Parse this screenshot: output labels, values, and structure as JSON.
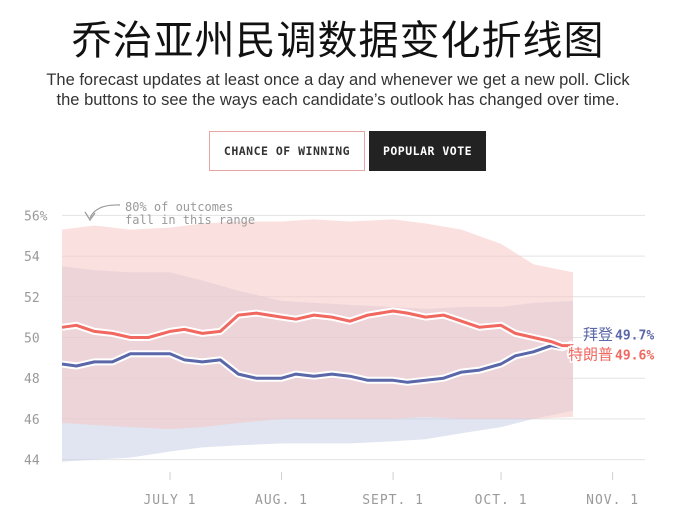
{
  "title": "乔治亚州民调数据变化折线图",
  "subtitle": {
    "line1": "The forecast updates at least once a day and whenever we get a new poll. Click",
    "line2": "the buttons to see the ways each candidate’s outlook has changed over time."
  },
  "buttons": {
    "chance": "CHANCE OF WINNING",
    "popular": "POPULAR VOTE"
  },
  "chart_data": {
    "type": "line",
    "annotation_line1": "80% of outcomes",
    "annotation_line2": "fall in this range",
    "ylim": [
      43,
      57
    ],
    "yticks": [
      44,
      46,
      48,
      50,
      52,
      54,
      56
    ],
    "ytick_labels": [
      "44",
      "46",
      "48",
      "50",
      "52",
      "54",
      "56%"
    ],
    "xlim": [
      "2020-06-01",
      "2020-11-10"
    ],
    "xticks": [
      {
        "date": "2020-07-01",
        "label": "JULY 1"
      },
      {
        "date": "2020-08-01",
        "label": "AUG. 1"
      },
      {
        "date": "2020-09-01",
        "label": "SEPT. 1"
      },
      {
        "date": "2020-10-01",
        "label": "OCT. 1"
      },
      {
        "date": "2020-11-01",
        "label": "NOV. 1"
      }
    ],
    "grid": true,
    "series": [
      {
        "name": "拜登",
        "value_label": "49.7%",
        "color": "#5a67a8",
        "band_color": "#c9cfe6",
        "points": [
          [
            "2020-06-01",
            48.7
          ],
          [
            "2020-06-05",
            48.6
          ],
          [
            "2020-06-10",
            48.8
          ],
          [
            "2020-06-15",
            48.8
          ],
          [
            "2020-06-20",
            49.2
          ],
          [
            "2020-06-25",
            49.2
          ],
          [
            "2020-07-01",
            49.2
          ],
          [
            "2020-07-05",
            48.9
          ],
          [
            "2020-07-10",
            48.8
          ],
          [
            "2020-07-15",
            48.9
          ],
          [
            "2020-07-20",
            48.2
          ],
          [
            "2020-07-25",
            48.0
          ],
          [
            "2020-08-01",
            48.0
          ],
          [
            "2020-08-05",
            48.2
          ],
          [
            "2020-08-10",
            48.1
          ],
          [
            "2020-08-15",
            48.2
          ],
          [
            "2020-08-20",
            48.1
          ],
          [
            "2020-08-25",
            47.9
          ],
          [
            "2020-09-01",
            47.9
          ],
          [
            "2020-09-05",
            47.8
          ],
          [
            "2020-09-10",
            47.9
          ],
          [
            "2020-09-15",
            48.0
          ],
          [
            "2020-09-20",
            48.3
          ],
          [
            "2020-09-25",
            48.4
          ],
          [
            "2020-10-01",
            48.7
          ],
          [
            "2020-10-05",
            49.1
          ],
          [
            "2020-10-10",
            49.3
          ],
          [
            "2020-10-15",
            49.6
          ],
          [
            "2020-10-18",
            49.5
          ],
          [
            "2020-10-21",
            49.7
          ]
        ],
        "band_upper": [
          [
            "2020-06-01",
            53.5
          ],
          [
            "2020-06-10",
            53.3
          ],
          [
            "2020-06-20",
            53.2
          ],
          [
            "2020-07-01",
            53.2
          ],
          [
            "2020-07-10",
            52.8
          ],
          [
            "2020-07-20",
            52.3
          ],
          [
            "2020-08-01",
            51.8
          ],
          [
            "2020-08-10",
            51.7
          ],
          [
            "2020-08-20",
            51.6
          ],
          [
            "2020-09-01",
            51.5
          ],
          [
            "2020-09-10",
            51.4
          ],
          [
            "2020-09-20",
            51.5
          ],
          [
            "2020-10-01",
            51.5
          ],
          [
            "2020-10-10",
            51.7
          ],
          [
            "2020-10-21",
            51.8
          ]
        ],
        "band_lower": [
          [
            "2020-06-01",
            43.9
          ],
          [
            "2020-06-10",
            44.0
          ],
          [
            "2020-06-20",
            44.1
          ],
          [
            "2020-07-01",
            44.4
          ],
          [
            "2020-07-10",
            44.6
          ],
          [
            "2020-07-20",
            44.7
          ],
          [
            "2020-08-01",
            44.8
          ],
          [
            "2020-08-10",
            44.8
          ],
          [
            "2020-08-20",
            44.8
          ],
          [
            "2020-09-01",
            44.9
          ],
          [
            "2020-09-10",
            45.0
          ],
          [
            "2020-09-20",
            45.3
          ],
          [
            "2020-10-01",
            45.6
          ],
          [
            "2020-10-10",
            46.0
          ],
          [
            "2020-10-21",
            46.4
          ]
        ]
      },
      {
        "name": "特朗普",
        "value_label": "49.6%",
        "color": "#f0685f",
        "band_color": "#f6c6c3",
        "points": [
          [
            "2020-06-01",
            50.5
          ],
          [
            "2020-06-05",
            50.6
          ],
          [
            "2020-06-10",
            50.3
          ],
          [
            "2020-06-15",
            50.2
          ],
          [
            "2020-06-20",
            50.0
          ],
          [
            "2020-06-25",
            50.0
          ],
          [
            "2020-07-01",
            50.3
          ],
          [
            "2020-07-05",
            50.4
          ],
          [
            "2020-07-10",
            50.2
          ],
          [
            "2020-07-15",
            50.3
          ],
          [
            "2020-07-20",
            51.1
          ],
          [
            "2020-07-25",
            51.2
          ],
          [
            "2020-08-01",
            51.0
          ],
          [
            "2020-08-05",
            50.9
          ],
          [
            "2020-08-10",
            51.1
          ],
          [
            "2020-08-15",
            51.0
          ],
          [
            "2020-08-20",
            50.8
          ],
          [
            "2020-08-25",
            51.1
          ],
          [
            "2020-09-01",
            51.3
          ],
          [
            "2020-09-05",
            51.2
          ],
          [
            "2020-09-10",
            51.0
          ],
          [
            "2020-09-15",
            51.1
          ],
          [
            "2020-09-20",
            50.8
          ],
          [
            "2020-09-25",
            50.5
          ],
          [
            "2020-10-01",
            50.6
          ],
          [
            "2020-10-05",
            50.2
          ],
          [
            "2020-10-10",
            50.0
          ],
          [
            "2020-10-15",
            49.8
          ],
          [
            "2020-10-18",
            49.6
          ],
          [
            "2020-10-21",
            49.6
          ]
        ],
        "band_upper": [
          [
            "2020-06-01",
            55.3
          ],
          [
            "2020-06-10",
            55.5
          ],
          [
            "2020-06-20",
            55.3
          ],
          [
            "2020-07-01",
            55.4
          ],
          [
            "2020-07-10",
            55.6
          ],
          [
            "2020-07-20",
            55.7
          ],
          [
            "2020-08-01",
            55.7
          ],
          [
            "2020-08-10",
            55.8
          ],
          [
            "2020-08-20",
            55.7
          ],
          [
            "2020-09-01",
            55.8
          ],
          [
            "2020-09-10",
            55.6
          ],
          [
            "2020-09-20",
            55.3
          ],
          [
            "2020-10-01",
            54.6
          ],
          [
            "2020-10-10",
            53.6
          ],
          [
            "2020-10-21",
            53.2
          ]
        ],
        "band_lower": [
          [
            "2020-06-01",
            45.8
          ],
          [
            "2020-06-10",
            45.7
          ],
          [
            "2020-06-20",
            45.6
          ],
          [
            "2020-07-01",
            45.5
          ],
          [
            "2020-07-10",
            45.6
          ],
          [
            "2020-07-20",
            45.8
          ],
          [
            "2020-08-01",
            46.0
          ],
          [
            "2020-08-10",
            46.0
          ],
          [
            "2020-08-20",
            46.0
          ],
          [
            "2020-09-01",
            46.0
          ],
          [
            "2020-09-10",
            46.1
          ],
          [
            "2020-09-20",
            46.0
          ],
          [
            "2020-10-01",
            46.0
          ],
          [
            "2020-10-10",
            46.0
          ],
          [
            "2020-10-21",
            46.1
          ]
        ]
      }
    ]
  }
}
